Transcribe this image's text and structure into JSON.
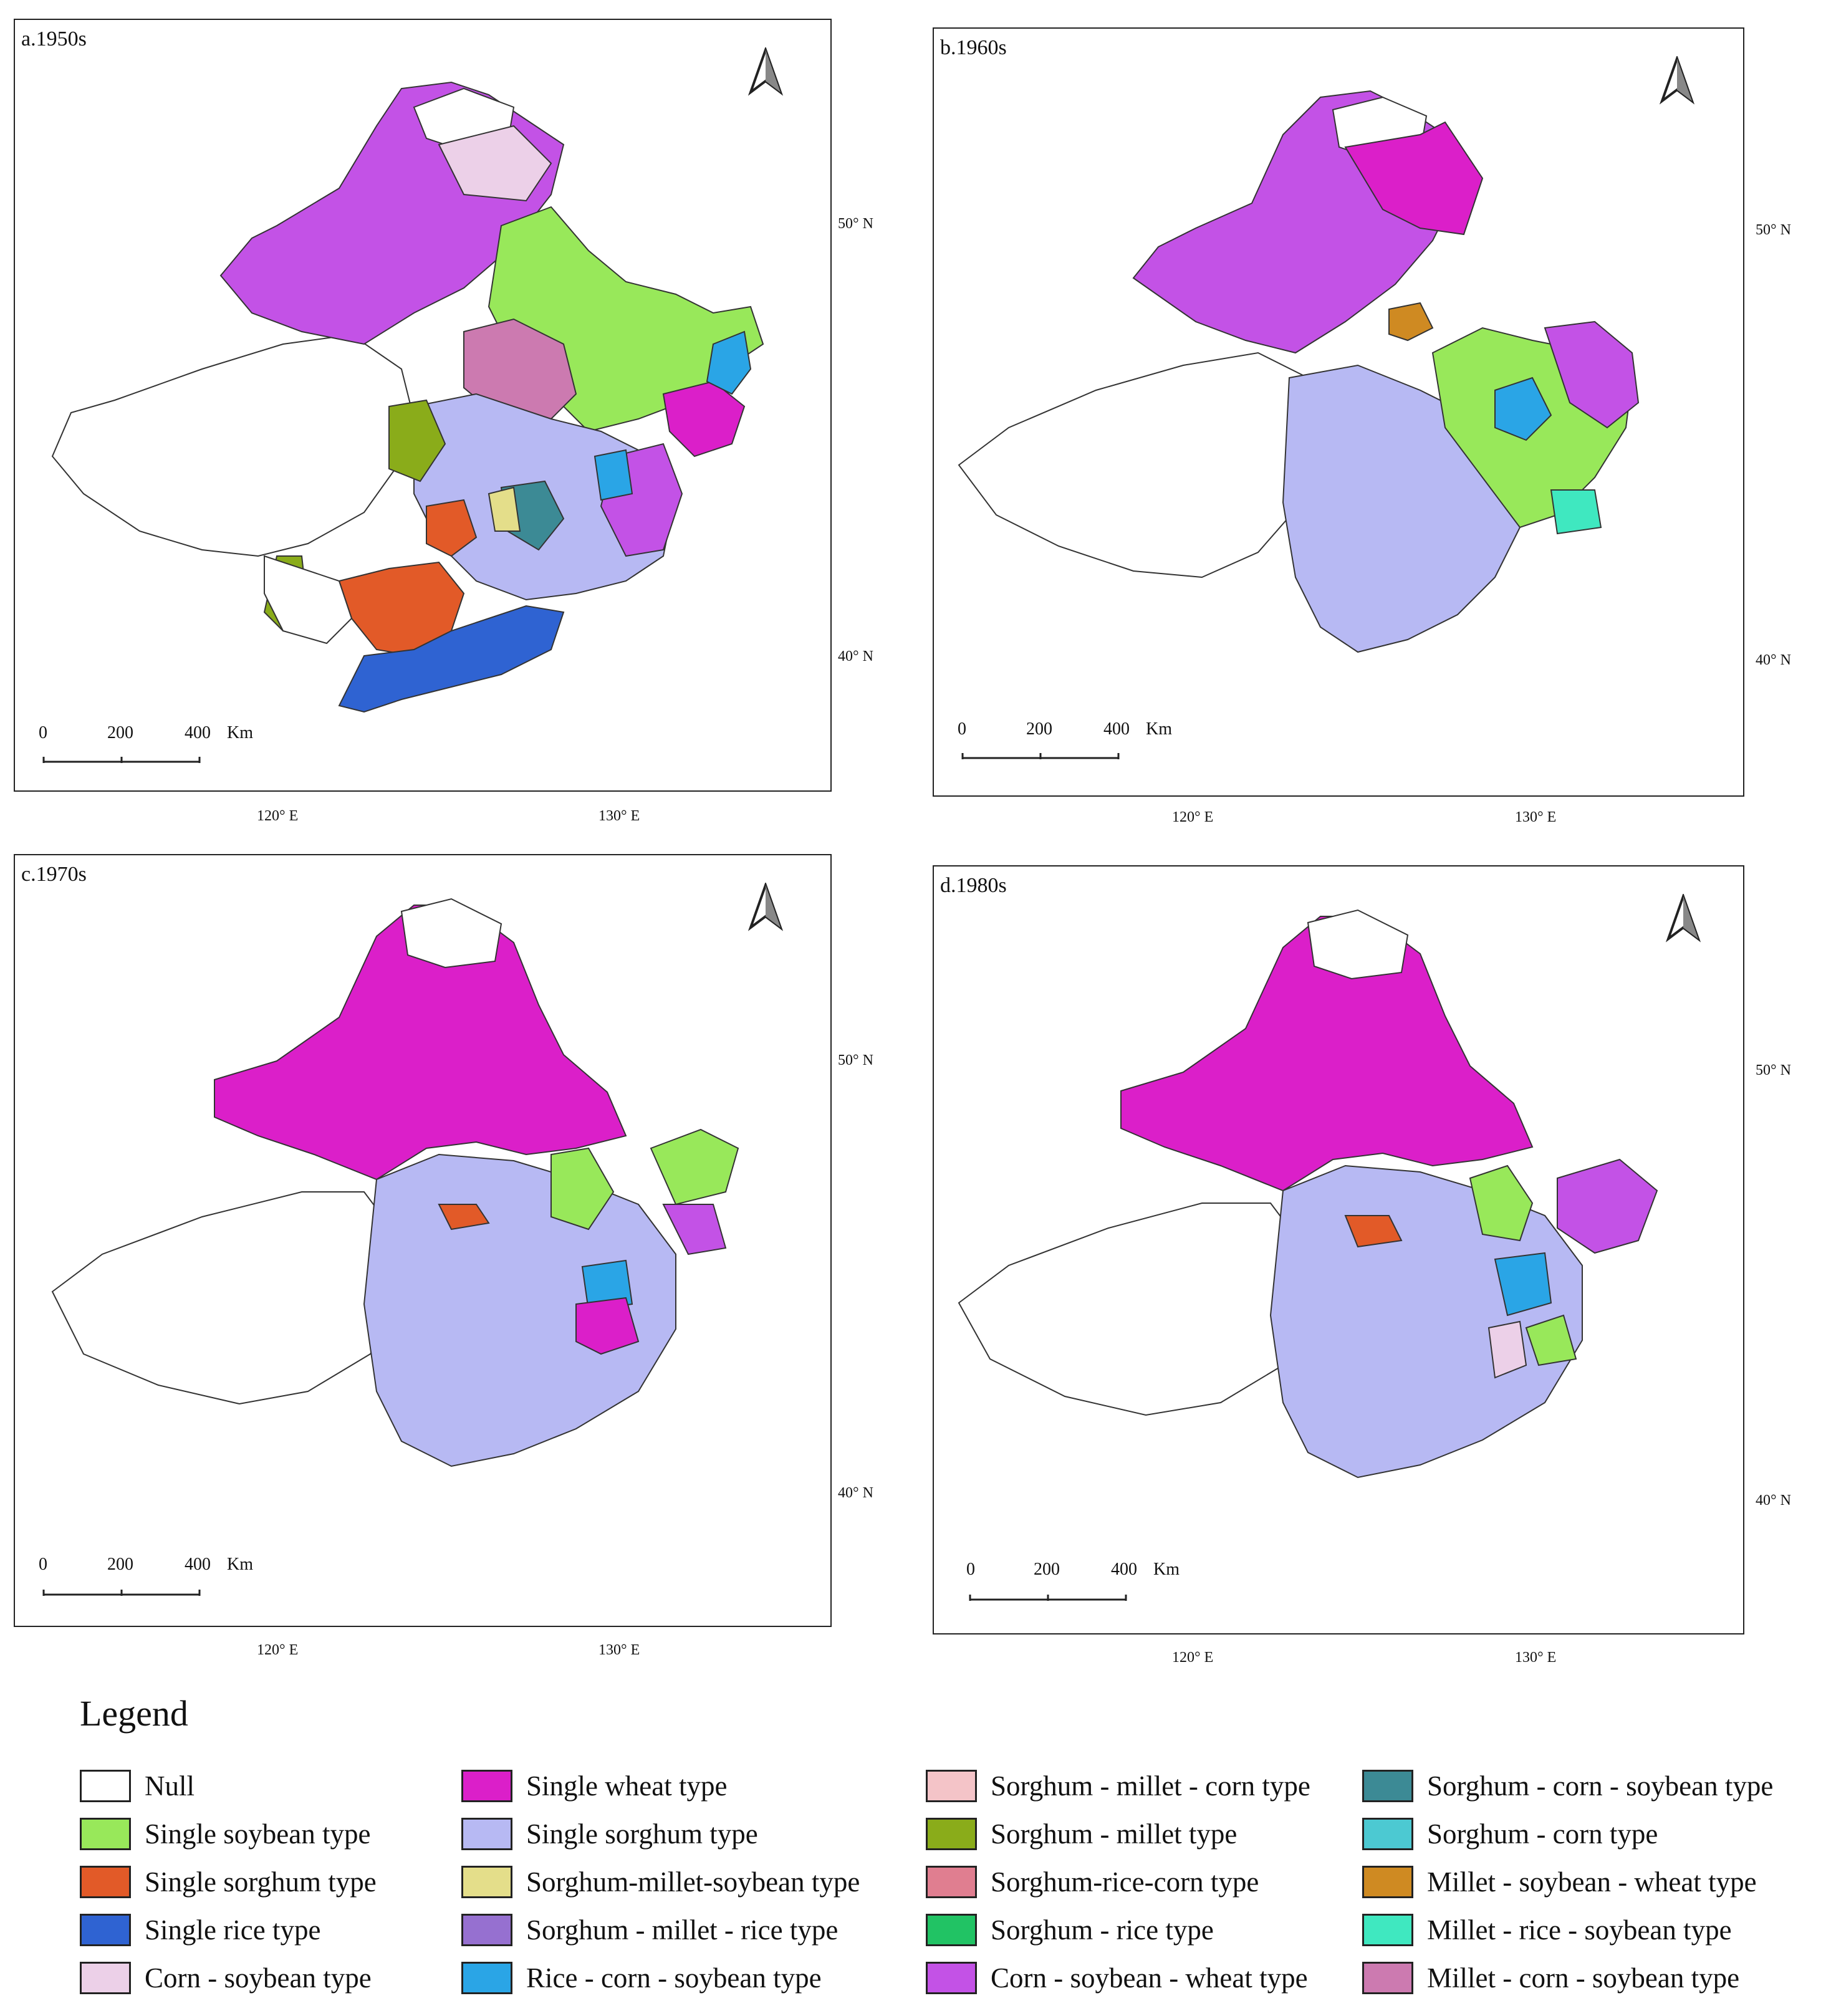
{
  "panels": [
    {
      "id": "a",
      "title": "a.1950s",
      "lat_labels": [
        "50° N",
        "40° N"
      ],
      "lon_labels": [
        "120° E",
        "130° E"
      ],
      "scale_labels": [
        "0",
        "200",
        "400",
        "Km"
      ],
      "regions": [
        "Single wheat type",
        "Corn - soybean - wheat type",
        "Single soybean type",
        "Single sorghum type",
        "Single rice type",
        "Rice - corn - soybean type",
        "Sorghum - millet type",
        "Millet - corn - soybean type",
        "Sorghum - corn - soybean type",
        "Sorghum-millet-soybean type",
        "Corn - soybean type",
        "Null"
      ]
    },
    {
      "id": "b",
      "title": "b.1960s",
      "lat_labels": [
        "50° N",
        "40° N"
      ],
      "lon_labels": [
        "120° E",
        "130° E"
      ],
      "scale_labels": [
        "0",
        "200",
        "400",
        "Km"
      ],
      "regions": [
        "Corn - soybean - wheat type",
        "Single wheat type",
        "Single sorghum type",
        "Single soybean type",
        "Rice - corn - soybean type",
        "Millet - soybean - wheat type",
        "Millet - rice - soybean type",
        "Null"
      ]
    },
    {
      "id": "c",
      "title": "c.1970s",
      "lat_labels": [
        "50° N",
        "40° N"
      ],
      "lon_labels": [
        "120° E",
        "130° E"
      ],
      "scale_labels": [
        "0",
        "200",
        "400",
        "Km"
      ],
      "regions": [
        "Single wheat type",
        "Single sorghum type",
        "Single soybean type",
        "Corn - soybean - wheat type",
        "Rice - corn - soybean type",
        "Single sorghum type",
        "Null"
      ]
    },
    {
      "id": "d",
      "title": "d.1980s",
      "lat_labels": [
        "50° N",
        "40° N"
      ],
      "lon_labels": [
        "120° E",
        "130° E"
      ],
      "scale_labels": [
        "0",
        "200",
        "400",
        "Km"
      ],
      "regions": [
        "Single wheat type",
        "Single sorghum type",
        "Single soybean type",
        "Corn - soybean - wheat type",
        "Rice - corn - soybean type",
        "Corn - soybean type",
        "Null"
      ]
    }
  ],
  "legend": {
    "title": "Legend",
    "items": [
      {
        "label": "Null",
        "color": "#ffffff"
      },
      {
        "label": "Single soybean type",
        "color": "#98e85a"
      },
      {
        "label": "Single sorghum type",
        "color": "#e25a28"
      },
      {
        "label": "Single rice type",
        "color": "#2f63d2"
      },
      {
        "label": "Corn - soybean type",
        "color": "#ecd0e8"
      },
      {
        "label": "Single wheat type",
        "color": "#db1fc9"
      },
      {
        "label": "Single sorghum type",
        "color": "#b7b9f3"
      },
      {
        "label": "Sorghum-millet-soybean type",
        "color": "#e4de8a"
      },
      {
        "label": "Sorghum - millet - rice type",
        "color": "#9670d0"
      },
      {
        "label": "Rice - corn - soybean type",
        "color": "#2aa5e6"
      },
      {
        "label": "Sorghum - millet - corn type",
        "color": "#f4c4c8"
      },
      {
        "label": "Sorghum - millet type",
        "color": "#8aac1a"
      },
      {
        "label": "Sorghum-rice-corn type",
        "color": "#e07e90"
      },
      {
        "label": "Sorghum - rice type",
        "color": "#21c364"
      },
      {
        "label": "Corn - soybean - wheat type",
        "color": "#c352e6"
      },
      {
        "label": "Sorghum - corn - soybean type",
        "color": "#3c8a95"
      },
      {
        "label": "Sorghum - corn type",
        "color": "#4cc9d2"
      },
      {
        "label": "Millet - soybean - wheat type",
        "color": "#cf8a22"
      },
      {
        "label": "Millet - rice - soybean type",
        "color": "#3fe8c0"
      },
      {
        "label": "Millet - corn - soybean type",
        "color": "#cc7ab0"
      }
    ]
  }
}
